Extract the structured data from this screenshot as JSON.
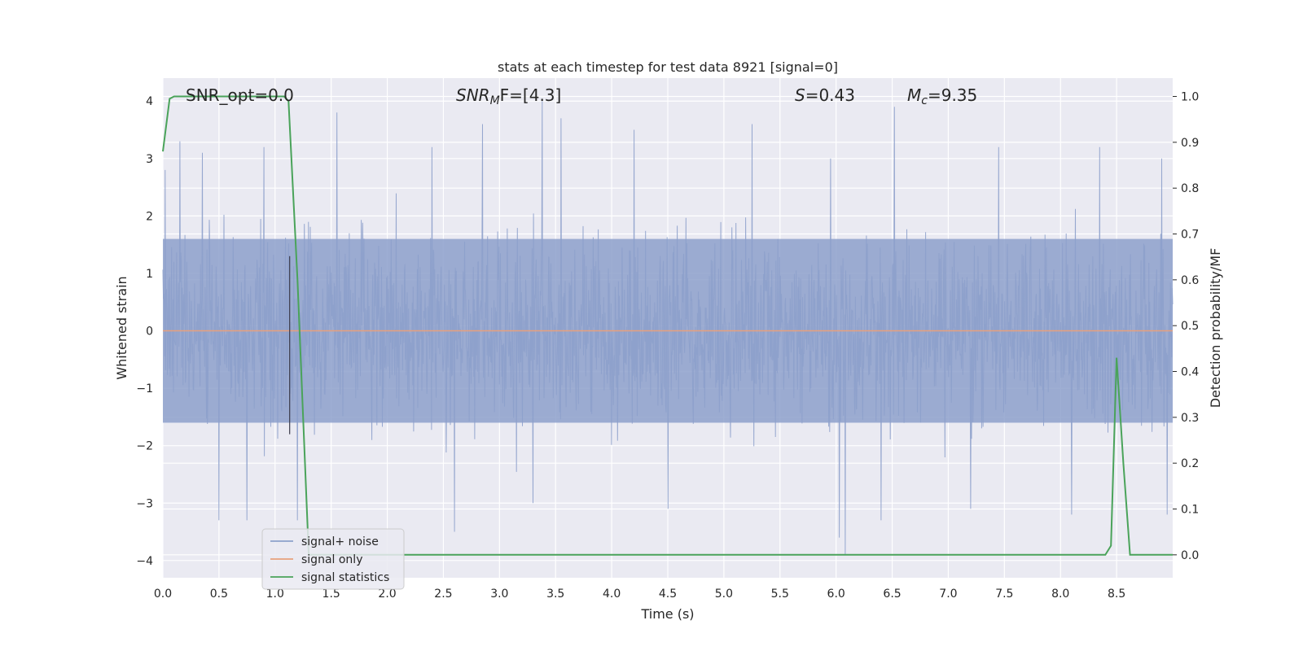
{
  "chart_data": {
    "type": "line",
    "title": "stats at each timestep for test data 8921 [signal=0]",
    "xlabel": "Time (s)",
    "ylabel_left": "Whitened strain",
    "ylabel_right": "Detection probability/MF",
    "xlim": [
      0.0,
      9.0
    ],
    "ylim_left": [
      -4.3,
      4.4
    ],
    "ylim_right": [
      -0.05,
      1.04
    ],
    "xticks": [
      "0.0",
      "0.5",
      "1.0",
      "1.5",
      "2.0",
      "2.5",
      "3.0",
      "3.5",
      "4.0",
      "4.5",
      "5.0",
      "5.5",
      "6.0",
      "6.5",
      "7.0",
      "7.5",
      "8.0",
      "8.5"
    ],
    "yticks_left": [
      "4",
      "3",
      "2",
      "1",
      "0",
      "−1",
      "−2",
      "−3",
      "−4"
    ],
    "yticks_right": [
      "1.0",
      "0.9",
      "0.8",
      "0.7",
      "0.6",
      "0.5",
      "0.4",
      "0.3",
      "0.2",
      "0.1",
      "0.0"
    ],
    "grid": true,
    "legend_position": "bottom-left",
    "annotations": {
      "snr_opt": "SNR_opt=0.0",
      "snr_mf_base": "SNR",
      "snr_mf_sub": "M",
      "snr_mf_rest": "F=[4.3]",
      "s_sym": "S",
      "s_val": "=0.43",
      "mc_base": "M",
      "mc_sub": "c",
      "mc_val": "=9.35"
    },
    "series": [
      {
        "name": "signal+ noise",
        "color": "#8da0cb",
        "description_envelope": {
          "upper_typical": 1.6,
          "lower_typical": -1.6,
          "upper_peaks": [
            [
              0.02,
              2.8
            ],
            [
              0.15,
              3.3
            ],
            [
              0.35,
              3.1
            ],
            [
              0.9,
              3.2
            ],
            [
              1.55,
              3.8
            ],
            [
              2.4,
              3.2
            ],
            [
              2.85,
              3.6
            ],
            [
              3.38,
              4.0
            ],
            [
              3.55,
              3.7
            ],
            [
              4.2,
              3.5
            ],
            [
              5.25,
              3.6
            ],
            [
              5.95,
              3.0
            ],
            [
              6.52,
              3.9
            ],
            [
              7.45,
              3.2
            ],
            [
              8.35,
              3.2
            ],
            [
              8.9,
              3.0
            ]
          ],
          "lower_peaks": [
            [
              0.5,
              -3.3
            ],
            [
              0.75,
              -3.3
            ],
            [
              1.2,
              -3.3
            ],
            [
              2.6,
              -3.5
            ],
            [
              3.3,
              -3.0
            ],
            [
              4.5,
              -3.1
            ],
            [
              6.03,
              -3.6
            ],
            [
              6.08,
              -3.9
            ],
            [
              6.4,
              -3.3
            ],
            [
              7.2,
              -3.1
            ],
            [
              8.1,
              -3.2
            ],
            [
              8.95,
              -3.2
            ]
          ]
        }
      },
      {
        "name": "signal only",
        "color": "#e8a07c",
        "x": [
          0.0,
          9.0
        ],
        "y": [
          0.0,
          0.0
        ]
      },
      {
        "name": "signal statistics",
        "color": "#4aa35a",
        "axis": "right",
        "x": [
          0.0,
          0.06,
          0.1,
          0.2,
          0.4,
          0.6,
          0.8,
          1.0,
          1.08,
          1.12,
          1.2,
          1.3,
          1.4,
          2.0,
          3.0,
          4.0,
          5.0,
          6.0,
          7.0,
          8.0,
          8.4,
          8.45,
          8.5,
          8.56,
          8.62,
          8.7,
          9.0
        ],
        "y": [
          0.88,
          0.995,
          1.0,
          1.0,
          1.0,
          1.0,
          1.0,
          1.0,
          1.0,
          0.99,
          0.6,
          0.0,
          0.0,
          0.0,
          0.0,
          0.0,
          0.0,
          0.0,
          0.0,
          0.0,
          0.0,
          0.02,
          0.43,
          0.2,
          0.0,
          0.0,
          0.0
        ]
      }
    ],
    "vertical_marker_x": 1.13
  },
  "legend": {
    "items": [
      "signal+ noise",
      "signal only",
      "signal statistics"
    ]
  },
  "colors": {
    "plot_bg": "#eaeaf2",
    "grid": "#ffffff",
    "noise": "#8da0cb",
    "signal": "#e8a07c",
    "stats": "#4aa35a",
    "marker": "#3a3a4a"
  }
}
